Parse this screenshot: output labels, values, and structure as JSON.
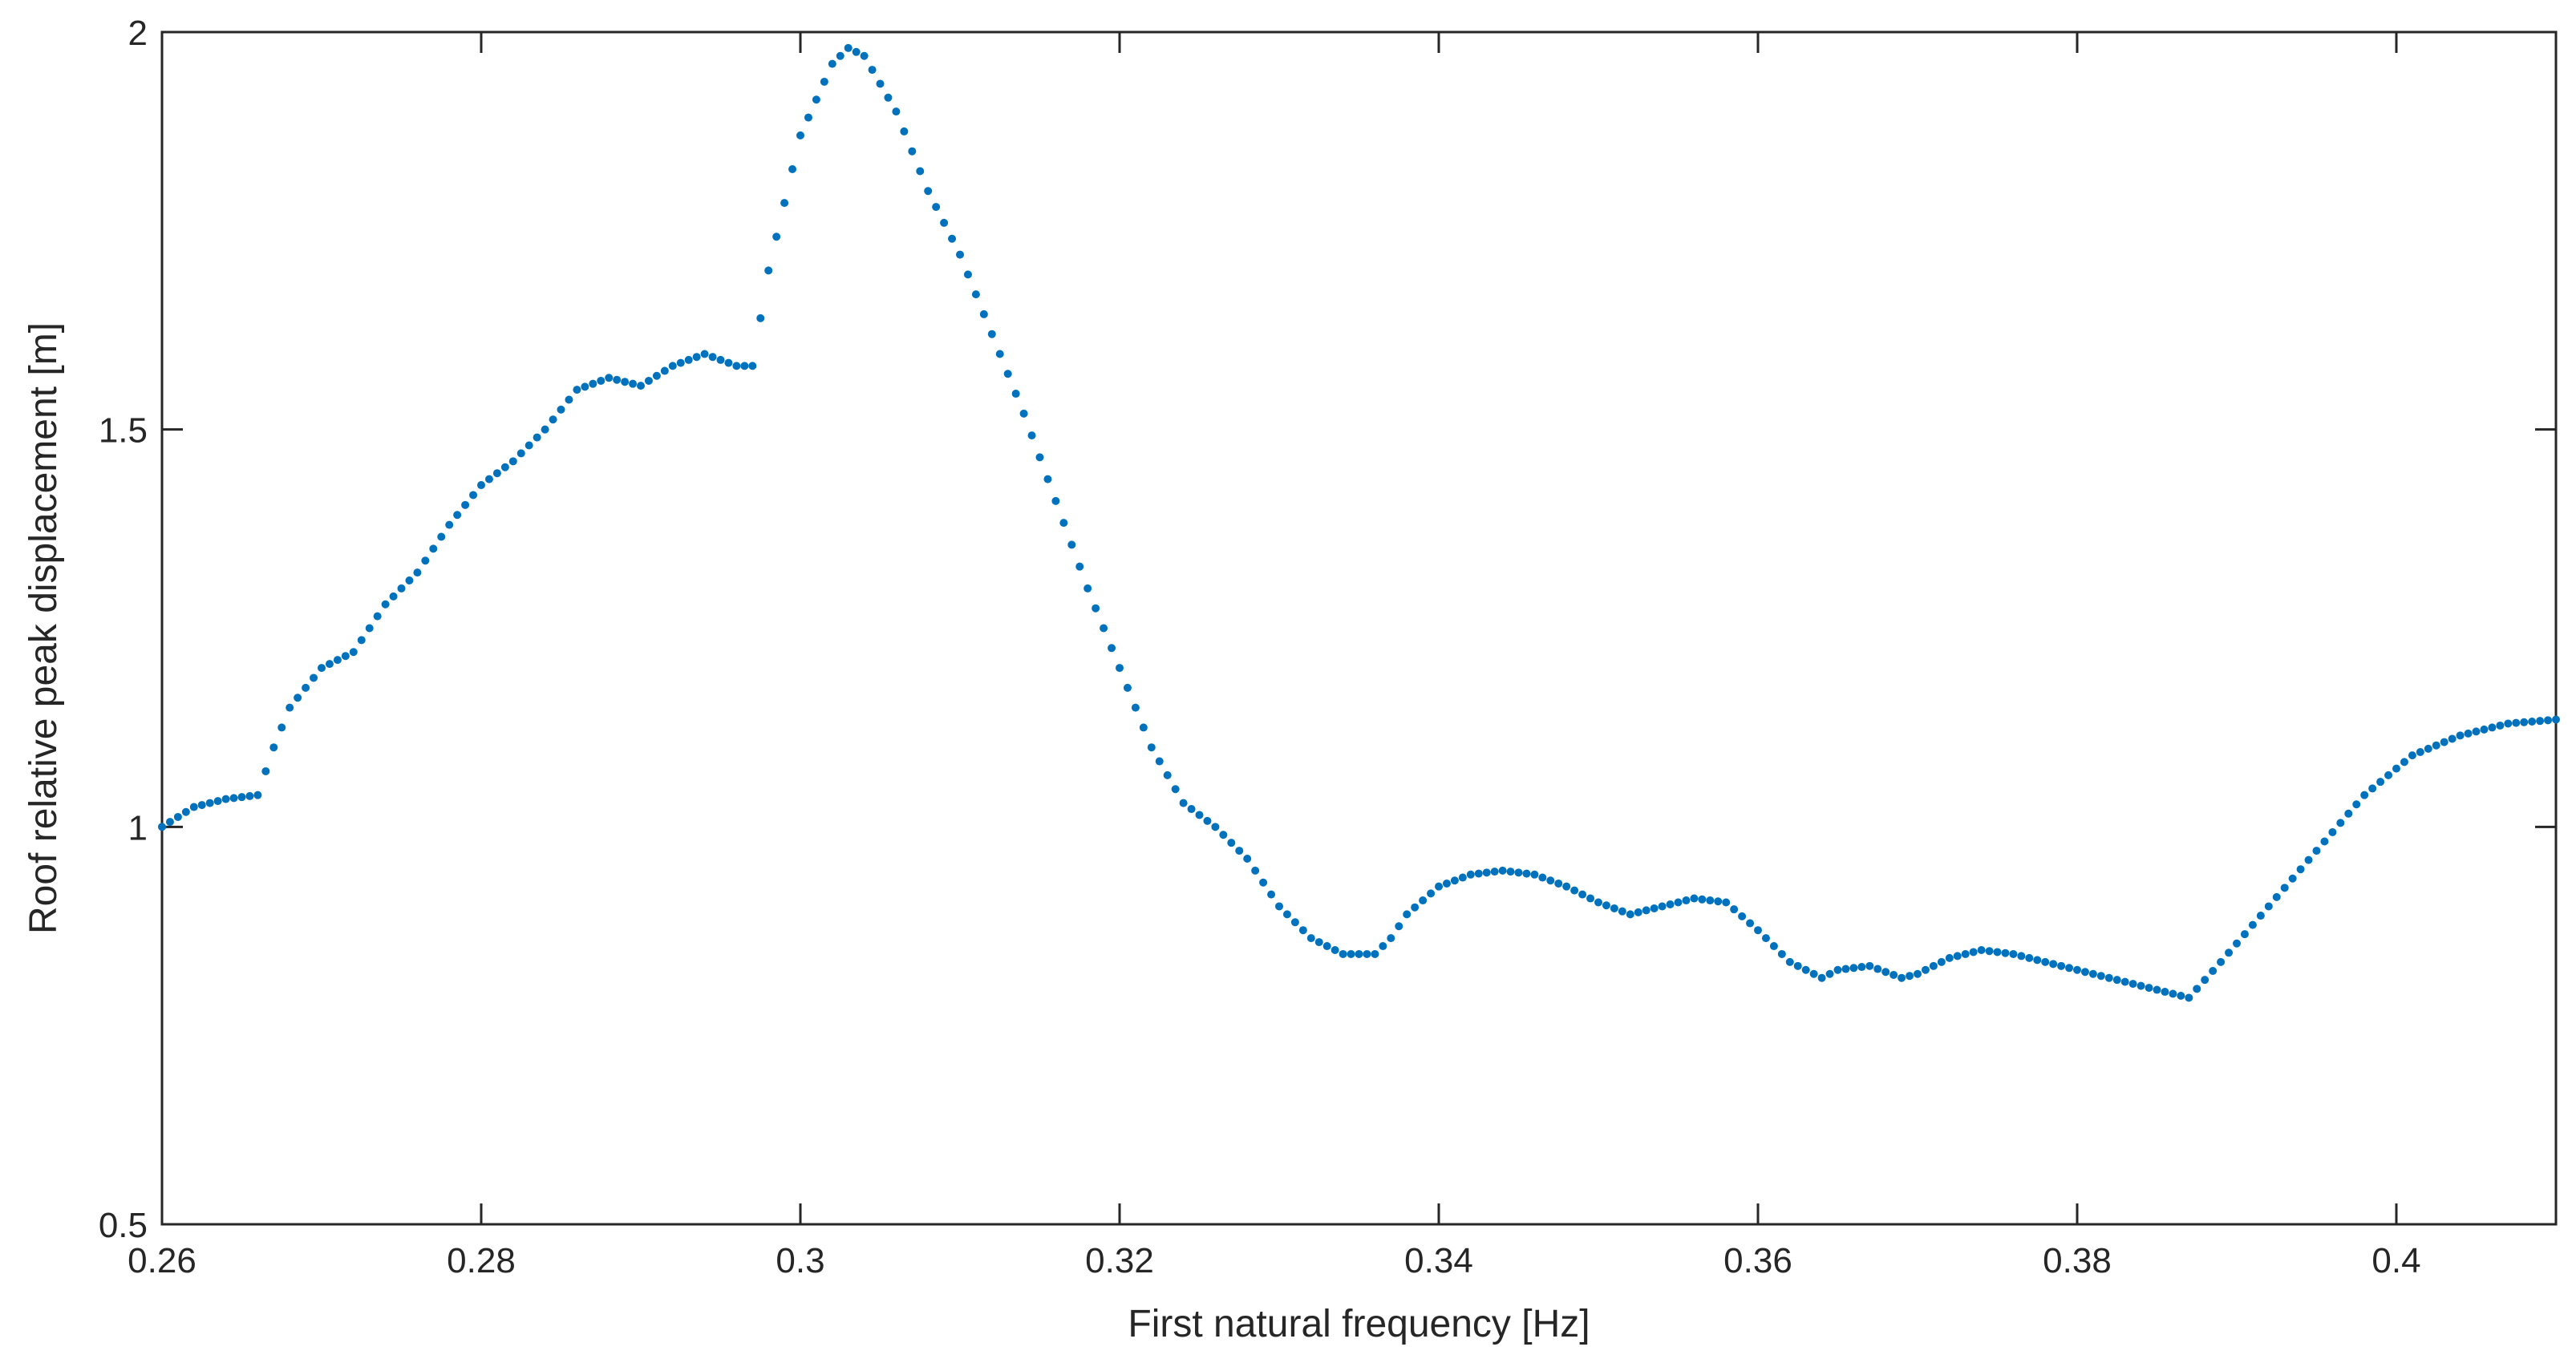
{
  "chart_data": {
    "type": "scatter",
    "title": "",
    "xlabel": "First natural frequency [Hz]",
    "ylabel": "Roof relative peak displacement [m]",
    "xlim": [
      0.26,
      0.41
    ],
    "ylim": [
      0.5,
      2
    ],
    "xticks": [
      "0.26",
      "0.28",
      "0.3",
      "0.32",
      "0.34",
      "0.36",
      "0.38",
      "0.4"
    ],
    "yticks": [
      "0.5",
      "1",
      "1.5",
      "2"
    ],
    "grid": false,
    "marker_color": "#0072BD",
    "series": [
      {
        "x": [
          0.26,
          0.262,
          0.264,
          0.266,
          0.2665,
          0.267,
          0.268,
          0.27,
          0.272,
          0.274,
          0.276,
          0.278,
          0.28,
          0.282,
          0.284,
          0.286,
          0.288,
          0.29,
          0.292,
          0.294,
          0.296,
          0.297,
          0.298,
          0.3,
          0.302,
          0.303,
          0.304,
          0.306,
          0.308,
          0.31,
          0.312,
          0.314,
          0.316,
          0.318,
          0.32,
          0.322,
          0.324,
          0.326,
          0.328,
          0.33,
          0.332,
          0.334,
          0.335,
          0.336,
          0.337,
          0.338,
          0.34,
          0.342,
          0.344,
          0.346,
          0.348,
          0.35,
          0.352,
          0.354,
          0.356,
          0.358,
          0.36,
          0.362,
          0.364,
          0.365,
          0.367,
          0.369,
          0.37,
          0.372,
          0.374,
          0.376,
          0.378,
          0.38,
          0.382,
          0.384,
          0.386,
          0.387,
          0.389,
          0.392,
          0.395,
          0.398,
          0.401,
          0.404,
          0.407,
          0.41
        ],
        "y": [
          1.0,
          1.025,
          1.035,
          1.04,
          1.07,
          1.1,
          1.15,
          1.2,
          1.22,
          1.28,
          1.32,
          1.38,
          1.43,
          1.46,
          1.5,
          1.55,
          1.565,
          1.555,
          1.58,
          1.595,
          1.58,
          1.58,
          1.7,
          1.87,
          1.96,
          1.98,
          1.97,
          1.9,
          1.8,
          1.72,
          1.62,
          1.52,
          1.41,
          1.3,
          1.2,
          1.1,
          1.03,
          1.0,
          0.96,
          0.9,
          0.86,
          0.84,
          0.84,
          0.84,
          0.86,
          0.89,
          0.925,
          0.94,
          0.945,
          0.94,
          0.925,
          0.905,
          0.89,
          0.9,
          0.91,
          0.905,
          0.87,
          0.83,
          0.81,
          0.82,
          0.825,
          0.81,
          0.815,
          0.835,
          0.845,
          0.84,
          0.83,
          0.82,
          0.81,
          0.8,
          0.79,
          0.785,
          0.83,
          0.9,
          0.97,
          1.04,
          1.09,
          1.115,
          1.13,
          1.135
        ]
      }
    ]
  }
}
